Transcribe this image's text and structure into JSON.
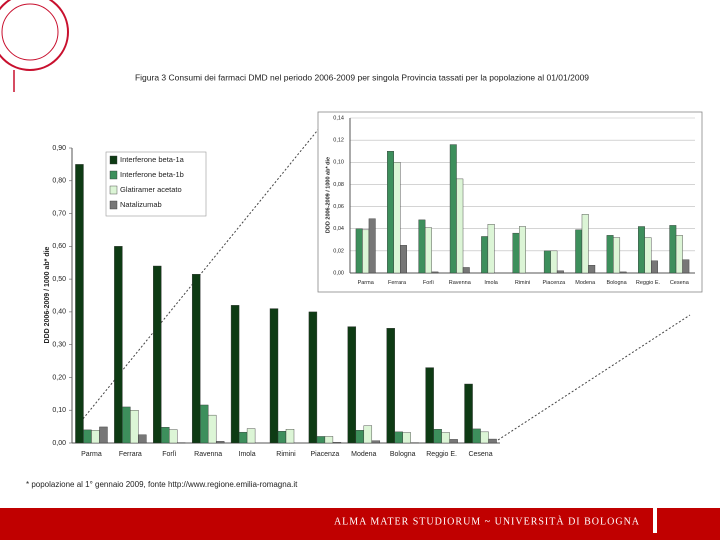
{
  "chart_data": {
    "type": "bar",
    "title": "Figura 3 Consumi dei farmaci DMD nel periodo 2006-2009 per singola Provincia tassati per la popolazione al 01/01/2009",
    "ylabel": "DDD 2006-2009 / 1000 ab* die",
    "categories": [
      "Parma",
      "Ferrara",
      "Forlì",
      "Ravenna",
      "Imola",
      "Rimini",
      "Piacenza",
      "Modena",
      "Bologna",
      "Reggio E.",
      "Cesena"
    ],
    "series": [
      {
        "name": "Interferone beta-1a",
        "color": "#0e3b14",
        "values": [
          0.85,
          0.6,
          0.54,
          0.515,
          0.42,
          0.41,
          0.4,
          0.355,
          0.35,
          0.23,
          0.18
        ]
      },
      {
        "name": "Interferone beta-1b",
        "color": "#3d8f5c",
        "values": [
          0.04,
          0.11,
          0.048,
          0.116,
          0.033,
          0.036,
          0.02,
          0.039,
          0.034,
          0.042,
          0.043
        ]
      },
      {
        "name": "Glatiramer acetato",
        "color": "#dcf5d6",
        "values": [
          0.039,
          0.1,
          0.041,
          0.085,
          0.044,
          0.042,
          0.02,
          0.053,
          0.032,
          0.032,
          0.034
        ]
      },
      {
        "name": "Natalizumab",
        "color": "#777777",
        "values": [
          0.049,
          0.025,
          0.001,
          0.005,
          0,
          0,
          0.002,
          0.007,
          0.001,
          0.011,
          0.012
        ]
      }
    ],
    "ylim": [
      0,
      0.9
    ],
    "yticks": [
      {
        "value": 0,
        "label": "0,00"
      },
      {
        "value": 0.1,
        "label": "0,10"
      },
      {
        "value": 0.2,
        "label": "0,20"
      },
      {
        "value": 0.3,
        "label": "0,30"
      },
      {
        "value": 0.4,
        "label": "0,40"
      },
      {
        "value": 0.5,
        "label": "0,50"
      },
      {
        "value": 0.6,
        "label": "0,60"
      },
      {
        "value": 0.7,
        "label": "0,70"
      },
      {
        "value": 0.8,
        "label": "0,80"
      },
      {
        "value": 0.9,
        "label": "0,90"
      }
    ],
    "grid": false,
    "legend": "upper left",
    "inset": {
      "ylim": [
        0,
        0.14
      ],
      "yticks": [
        {
          "value": 0,
          "label": "0,00"
        },
        {
          "value": 0.02,
          "label": "0,02"
        },
        {
          "value": 0.04,
          "label": "0,04"
        },
        {
          "value": 0.06,
          "label": "0,06"
        },
        {
          "value": 0.08,
          "label": "0,08"
        },
        {
          "value": 0.1,
          "label": "0,10"
        },
        {
          "value": 0.12,
          "label": "0,12"
        },
        {
          "value": 0.14,
          "label": "0,14"
        }
      ],
      "grid": true
    },
    "note": "* popolazione al 1° gennaio 2009, fonte http://www.regione.emilia-romagna.it"
  },
  "footer": {
    "text": "ALMA MATER STUDIORUM ~ UNIVERSITÀ DI BOLOGNA"
  }
}
